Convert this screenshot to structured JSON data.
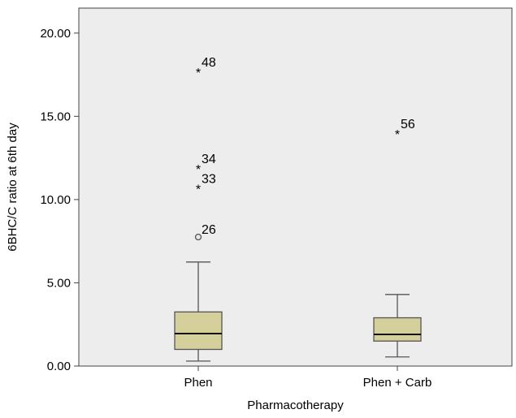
{
  "chart_data": {
    "type": "boxplot",
    "xlabel": "Pharmacotherapy",
    "ylabel": "6BHC/C ratio at 6th day",
    "ylim": [
      0,
      21.5
    ],
    "yticks": [
      "0.00",
      "5.00",
      "10.00",
      "15.00",
      "20.00"
    ],
    "ytick_values": [
      0,
      5,
      10,
      15,
      20
    ],
    "grid": false,
    "categories": [
      "Phen",
      "Phen + Carb"
    ],
    "boxes": [
      {
        "category": "Phen",
        "whisker_low": 0.3,
        "q1": 1.0,
        "median": 1.95,
        "q3": 3.25,
        "whisker_high": 6.25,
        "outliers": [
          {
            "label": "48",
            "value": 17.8,
            "kind": "extreme"
          },
          {
            "label": "34",
            "value": 12.0,
            "kind": "extreme"
          },
          {
            "label": "33",
            "value": 10.8,
            "kind": "extreme"
          },
          {
            "label": "26",
            "value": 7.75,
            "kind": "outlier"
          }
        ]
      },
      {
        "category": "Phen + Carb",
        "whisker_low": 0.55,
        "q1": 1.5,
        "median": 1.9,
        "q3": 2.9,
        "whisker_high": 4.3,
        "outliers": [
          {
            "label": "56",
            "value": 14.1,
            "kind": "extreme"
          }
        ]
      }
    ],
    "colors": {
      "plot_background": "#ededed",
      "box_fill": "#d5cf9c",
      "box_stroke": "#555555",
      "axis": "#444444"
    }
  }
}
